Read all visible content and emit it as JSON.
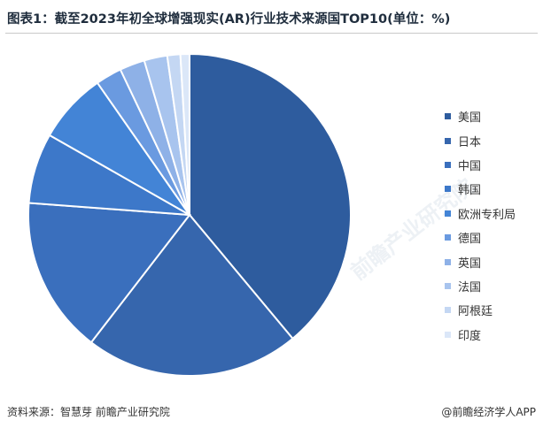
{
  "title": "图表1：截至2023年初全球增强现实(AR)行业技术来源国TOP10(单位：%)",
  "watermark": "前瞻产业研究院",
  "footer": {
    "source": "资料来源：智慧芽 前瞻产业研究院",
    "brand": "@前瞻经济学人APP"
  },
  "chart_data": {
    "type": "pie",
    "title": "图表1：截至2023年初全球增强现实(AR)行业技术来源国TOP10(单位：%)",
    "categories": [
      "美国",
      "日本",
      "中国",
      "韩国",
      "欧洲专利局",
      "德国",
      "英国",
      "法国",
      "阿根廷",
      "印度"
    ],
    "values": [
      38.6,
      21.3,
      15.6,
      7.0,
      7.0,
      2.6,
      2.5,
      2.3,
      1.3,
      0.9
    ],
    "colors": [
      "#2e5c9e",
      "#3666ad",
      "#3a6fbd",
      "#3d78c9",
      "#4384d6",
      "#6a9ae0",
      "#8eb1e7",
      "#a8c4ee",
      "#c4d7f3",
      "#dbe7f8"
    ],
    "legend_position": "right"
  }
}
